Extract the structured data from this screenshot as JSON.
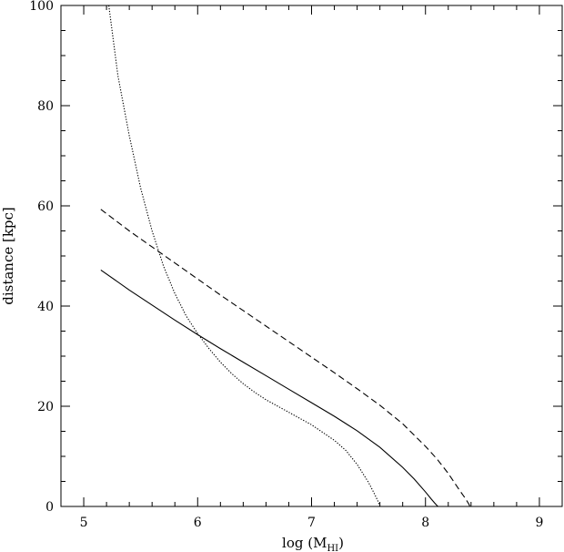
{
  "chart_data": {
    "type": "line",
    "title": "",
    "xlabel": "log (M",
    "xlabel_sub": "HI",
    "xlabel_close": ")",
    "ylabel": "distance [kpc]",
    "xlim": [
      4.8,
      9.2
    ],
    "ylim": [
      0,
      100
    ],
    "xticks": [
      5,
      6,
      7,
      8,
      9
    ],
    "xtick_labels": [
      "5",
      "6",
      "7",
      "8",
      "9"
    ],
    "yticks": [
      0,
      20,
      40,
      60,
      80,
      100
    ],
    "ytick_labels": [
      "0",
      "20",
      "40",
      "60",
      "80",
      "100"
    ],
    "grid": false,
    "series": [
      {
        "style": "solid",
        "x": [
          5.15,
          5.4,
          5.6,
          5.8,
          6.0,
          6.2,
          6.4,
          6.6,
          6.8,
          7.0,
          7.2,
          7.4,
          7.6,
          7.8,
          7.9,
          8.0,
          8.05,
          8.08,
          8.1,
          8.11
        ],
        "y": [
          47.2,
          43.2,
          40.2,
          37.2,
          34.3,
          31.5,
          28.8,
          26.1,
          23.4,
          20.7,
          18.0,
          15.1,
          11.8,
          7.8,
          5.5,
          2.9,
          1.5,
          0.7,
          0.2,
          0
        ]
      },
      {
        "style": "dashed",
        "x": [
          5.15,
          5.4,
          5.6,
          5.8,
          6.0,
          6.2,
          6.4,
          6.6,
          6.8,
          7.0,
          7.2,
          7.4,
          7.6,
          7.8,
          8.0,
          8.1,
          8.2,
          8.3,
          8.35,
          8.38,
          8.39
        ],
        "y": [
          59.3,
          55.0,
          51.8,
          48.6,
          45.4,
          42.2,
          39.1,
          36.0,
          32.9,
          29.8,
          26.7,
          23.5,
          20.2,
          16.5,
          12.0,
          9.5,
          6.6,
          3.2,
          1.6,
          0.5,
          0
        ]
      },
      {
        "style": "dotted",
        "x": [
          5.22,
          5.3,
          5.4,
          5.5,
          5.6,
          5.7,
          5.8,
          5.9,
          6.0,
          6.1,
          6.2,
          6.3,
          6.4,
          6.5,
          6.6,
          6.8,
          7.0,
          7.2,
          7.3,
          7.4,
          7.5,
          7.55,
          7.58,
          7.6
        ],
        "y": [
          100,
          86,
          74,
          63.5,
          55.0,
          48.0,
          42.5,
          38.0,
          34.5,
          31.5,
          28.8,
          26.5,
          24.5,
          22.8,
          21.3,
          18.8,
          16.3,
          13.2,
          11.2,
          8.4,
          4.8,
          2.6,
          1.2,
          0
        ]
      }
    ]
  }
}
